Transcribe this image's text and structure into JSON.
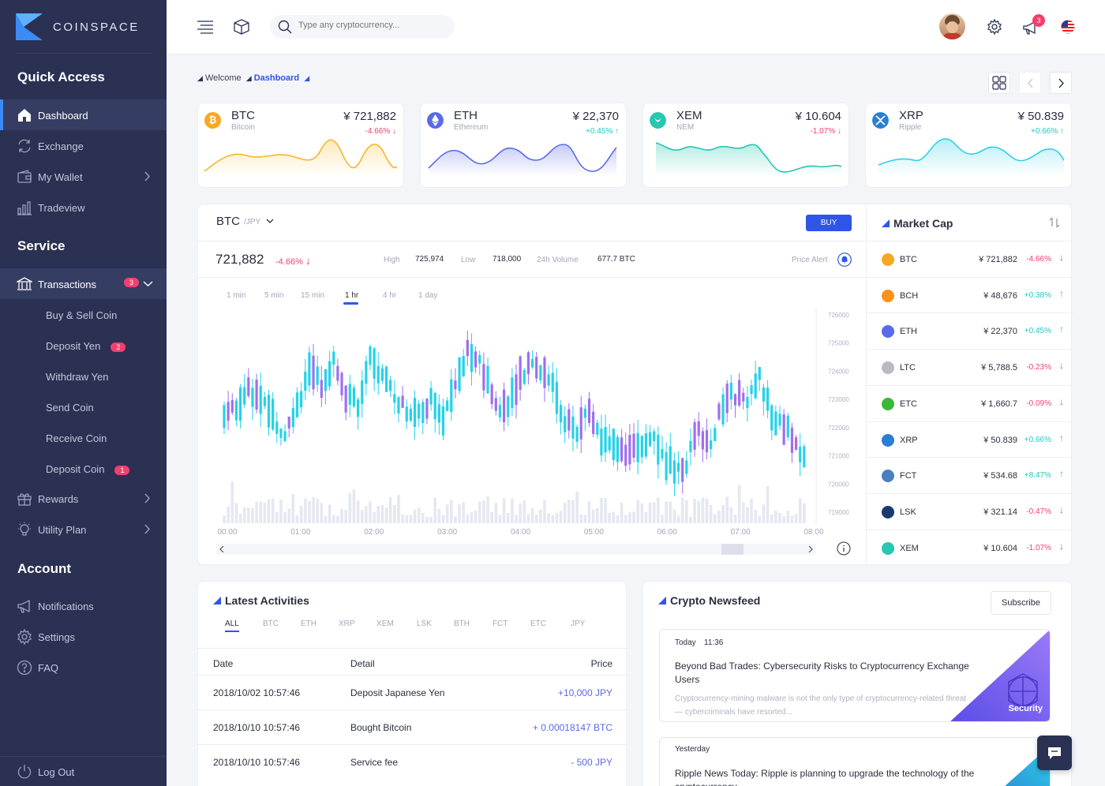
{
  "app": {
    "brand": "COINSPACE",
    "colors": {
      "primary": "#2e55e8",
      "sidebar": "#2b3152",
      "negative": "#f33f6f",
      "positive": "#1fc8c0",
      "btc": "#f7a823",
      "eth": "#5a6ae8",
      "xem": "#27c7b1",
      "xrp": "#2a7fd4"
    }
  },
  "sidebar": {
    "quick_access_title": "Quick Access",
    "quick_items": [
      {
        "label": "Dashboard",
        "icon": "home-icon"
      },
      {
        "label": "Exchange",
        "icon": "exchange-icon"
      },
      {
        "label": "My Wallet",
        "icon": "wallet-icon"
      },
      {
        "label": "Tradeview",
        "icon": "chart-icon"
      }
    ],
    "service_title": "Service",
    "transactions": {
      "label": "Transactions",
      "badge": "3"
    },
    "sub_items": [
      {
        "label": "Buy & Sell Coin",
        "badge": ""
      },
      {
        "label": "Deposit Yen",
        "badge": "2"
      },
      {
        "label": "Withdraw Yen",
        "badge": ""
      },
      {
        "label": "Send Coin",
        "badge": ""
      },
      {
        "label": "Receive Coin",
        "badge": ""
      },
      {
        "label": "Deposit Coin",
        "badge": "1"
      }
    ],
    "rewards": "Rewards",
    "utility_plan": "Utility Plan",
    "account_title": "Account",
    "account_items": [
      "Notifications",
      "Settings",
      "FAQ"
    ],
    "logout": "Log Out"
  },
  "topbar": {
    "search_placeholder": "Type any cryptocurrency...",
    "notification_count": "3"
  },
  "breadcrumb": {
    "root": "Welcome",
    "current": "Dashboard"
  },
  "coins": [
    {
      "symbol": "BTC",
      "name": "Bitcoin",
      "price": "¥ 721,882",
      "change": "-4.66%",
      "dir": "down"
    },
    {
      "symbol": "ETH",
      "name": "Ethereum",
      "price": "¥ 22,370",
      "change": "+0.45%",
      "dir": "up"
    },
    {
      "symbol": "XEM",
      "name": "NEM",
      "price": "¥ 10.604",
      "change": "-1.07%",
      "dir": "down"
    },
    {
      "symbol": "XRP",
      "name": "Ripple",
      "price": "¥ 50.839",
      "change": "+0.66%",
      "dir": "up"
    }
  ],
  "trade": {
    "pair": "BTC",
    "quote": "/JPY",
    "buy": "BUY",
    "price": "721,882",
    "change": "-4.66%",
    "high_label": "High",
    "high": "725,974",
    "low_label": "Low",
    "low": "718,000",
    "vol_label": "24h Volume",
    "volume": "677.7 BTC",
    "price_alert": "Price Alert",
    "timeframes": [
      "1 min",
      "5 min",
      "15 min",
      "1 hr",
      "4 hr",
      "1 day"
    ],
    "active_timeframe": "1 hr"
  },
  "chart_data": {
    "type": "candlestick",
    "x_ticks": [
      "00:00",
      "01:00",
      "02:00",
      "03:00",
      "04:00",
      "05:00",
      "06:00",
      "07:00",
      "08:00"
    ],
    "y_ticks": [
      "726000",
      "725000",
      "724000",
      "723000",
      "722000",
      "721000",
      "720000",
      "719000"
    ],
    "ylim": [
      719000,
      726000
    ],
    "candles_close_approx": [
      722400,
      722800,
      723400,
      723100,
      722500,
      721700,
      722700,
      724100,
      723600,
      724300,
      723200,
      722800,
      724500,
      723900,
      723200,
      722700,
      722600,
      723000,
      722400,
      723700,
      724600,
      724200,
      723200,
      722600,
      723400,
      724300,
      724000,
      723600,
      722300,
      721700,
      722700,
      721500,
      721400,
      720900,
      721300,
      721800,
      720900,
      720600,
      720700,
      721900,
      721400,
      722800,
      723200,
      722900,
      723800,
      722500,
      722100,
      721200
    ]
  },
  "market_cap": {
    "title": "Market Cap",
    "rows": [
      {
        "symbol": "BTC",
        "price": "¥ 721,882",
        "change": "-4.66%",
        "dir": "down",
        "color": "#f7a823"
      },
      {
        "symbol": "BCH",
        "price": "¥ 48,676",
        "change": "+0.38%",
        "dir": "up",
        "color": "#f7931a"
      },
      {
        "symbol": "ETH",
        "price": "¥ 22,370",
        "change": "+0.45%",
        "dir": "up",
        "color": "#5a6ae8"
      },
      {
        "symbol": "LTC",
        "price": "¥ 5,788.5",
        "change": "-0.23%",
        "dir": "down",
        "color": "#b8bac4"
      },
      {
        "symbol": "ETC",
        "price": "¥ 1,660.7",
        "change": "-0.09%",
        "dir": "down",
        "color": "#3ab83a"
      },
      {
        "symbol": "XRP",
        "price": "¥ 50.839",
        "change": "+0.66%",
        "dir": "up",
        "color": "#2a7fd4"
      },
      {
        "symbol": "FCT",
        "price": "¥ 534.68",
        "change": "+8.47%",
        "dir": "up",
        "color": "#4a7fc0"
      },
      {
        "symbol": "LSK",
        "price": "¥ 321.14",
        "change": "-0.47%",
        "dir": "down",
        "color": "#1a3a6e"
      },
      {
        "symbol": "XEM",
        "price": "¥ 10.604",
        "change": "-1.07%",
        "dir": "down",
        "color": "#27c7b1"
      }
    ]
  },
  "activities": {
    "title": "Latest Activities",
    "filters": [
      "ALL",
      "BTC",
      "ETH",
      "XRP",
      "XEM",
      "LSK",
      "BTH",
      "FCT",
      "ETC",
      "JPY"
    ],
    "columns": [
      "Date",
      "Detail",
      "Price"
    ],
    "rows": [
      {
        "date": "2018/10/02 10:57:46",
        "detail": "Deposit Japanese Yen",
        "price": "+10,000 JPY"
      },
      {
        "date": "2018/10/10 10:57:46",
        "detail": "Bought Bitcoin",
        "price": "+ 0.00018147 BTC"
      },
      {
        "date": "2018/10/10 10:57:46",
        "detail": "Service fee",
        "price": "- 500 JPY"
      }
    ]
  },
  "news": {
    "title": "Crypto Newsfeed",
    "subscribe": "Subscribe",
    "items": [
      {
        "day": "Today",
        "time": "11:36",
        "headline": "Beyond Bad Trades: Cybersecurity Risks to Cryptocurrency Exchange Users",
        "snippet": "Cryptocurrency-mining malware is not the only type of cryptocurrency-related threat — cybercriminals have resorted...",
        "tag": "Security"
      },
      {
        "day": "Yesterday",
        "time": "",
        "headline": "Ripple News Today: Ripple is planning to upgrade the technology of the cryptocurrency",
        "snippet": "",
        "tag": ""
      }
    ]
  }
}
